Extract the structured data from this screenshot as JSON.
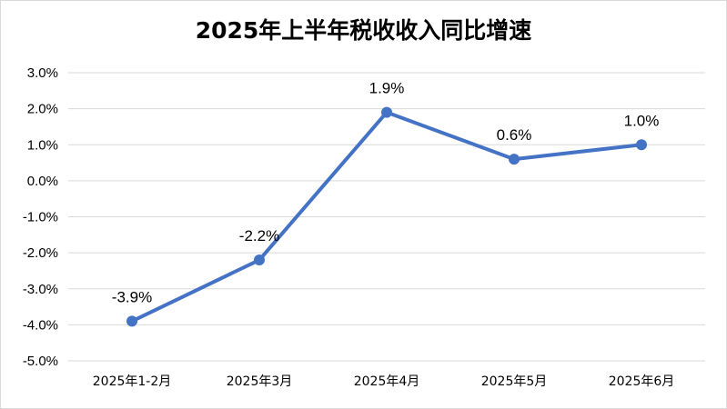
{
  "chart_data": {
    "type": "line",
    "title": "2025年上半年税收收入同比增速",
    "xlabel": "",
    "ylabel": "",
    "categories": [
      "2025年1-2月",
      "2025年3月",
      "2025年4月",
      "2025年5月",
      "2025年6月"
    ],
    "series": [
      {
        "values": [
          -3.9,
          -2.2,
          1.9,
          0.6,
          1.0
        ]
      }
    ],
    "data_labels": [
      "-3.9%",
      "-2.2%",
      "1.9%",
      "0.6%",
      "1.0%"
    ],
    "y_ticks": [
      "3.0%",
      "2.0%",
      "1.0%",
      "0.0%",
      "-1.0%",
      "-2.0%",
      "-3.0%",
      "-4.0%",
      "-5.0%"
    ],
    "ylim": [
      -5,
      3
    ],
    "grid": true,
    "legend": "none",
    "line_color": "#4472c4",
    "grid_color": "#d9d9d9"
  }
}
